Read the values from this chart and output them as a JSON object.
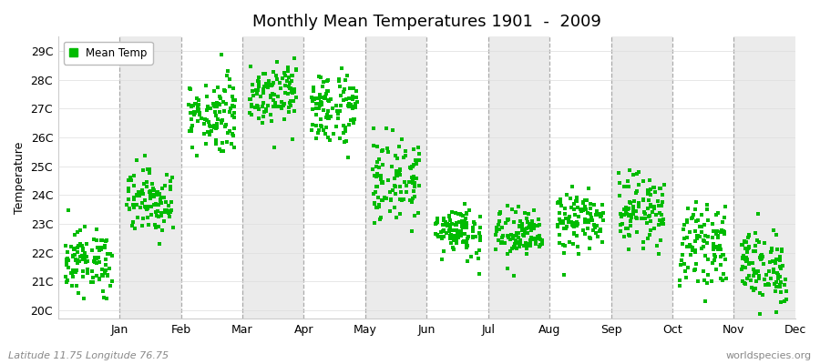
{
  "title": "Monthly Mean Temperatures 1901  -  2009",
  "ylabel": "Temperature",
  "ytick_labels": [
    "20C",
    "21C",
    "22C",
    "23C",
    "24C",
    "25C",
    "26C",
    "27C",
    "28C",
    "29C"
  ],
  "ytick_values": [
    20,
    21,
    22,
    23,
    24,
    25,
    26,
    27,
    28,
    29
  ],
  "ylim": [
    19.7,
    29.5
  ],
  "xlim": [
    0,
    12
  ],
  "month_labels": [
    "Jan",
    "Feb",
    "Mar",
    "Apr",
    "May",
    "Jun",
    "Jul",
    "Aug",
    "Sep",
    "Oct",
    "Nov",
    "Dec"
  ],
  "month_tick_positions": [
    1,
    2,
    3,
    4,
    5,
    6,
    7,
    8,
    9,
    10,
    11,
    12
  ],
  "dot_color": "#00BB00",
  "dot_size": 5,
  "background_color": "#ffffff",
  "band_color_shaded": "#ebebeb",
  "band_color_white": "#ffffff",
  "legend_label": "Mean Temp",
  "footer_left": "Latitude 11.75 Longitude 76.75",
  "footer_right": "worldspecies.org",
  "monthly_mean": [
    21.7,
    23.8,
    26.8,
    27.6,
    27.0,
    24.5,
    22.8,
    22.6,
    23.1,
    23.5,
    22.3,
    21.5
  ],
  "monthly_std": [
    0.55,
    0.55,
    0.65,
    0.55,
    0.65,
    0.75,
    0.45,
    0.45,
    0.5,
    0.6,
    0.65,
    0.65
  ],
  "n_years": 109,
  "jitter": 0.38,
  "dashed_line_color": "#999999",
  "title_fontsize": 13,
  "label_fontsize": 9,
  "footer_fontsize": 8
}
